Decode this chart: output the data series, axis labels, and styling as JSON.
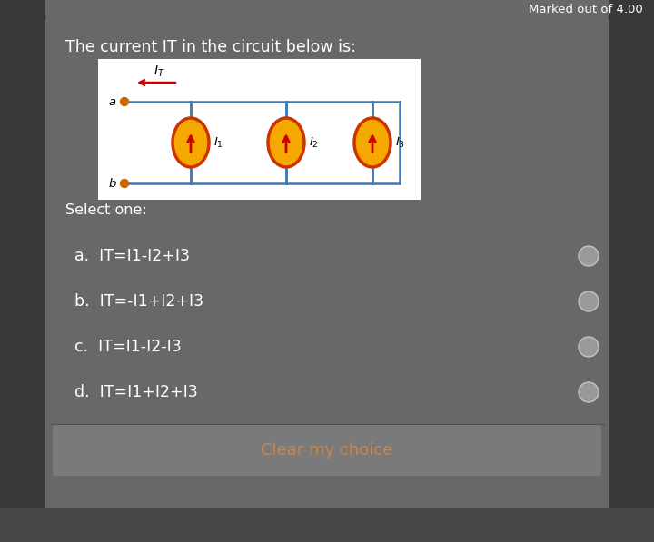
{
  "bg_outer": "#585858",
  "bg_header": "#696969",
  "bg_card": "#686868",
  "bg_circuit": "#ffffff",
  "bg_button": "#7a7a7a",
  "header_text": "Marked out of 4.00",
  "question_text": "The current IT in the circuit below is:",
  "select_text": "Select one:",
  "options": [
    "a.  IT=I1-I2+I3",
    "b.  IT=-I1+I2+I3",
    "c.  IT=I1-I2-I3",
    "d.  IT=I1+I2+I3"
  ],
  "button_text": "Clear my choice",
  "button_color": "#c8864a",
  "text_color": "#ffffff",
  "circuit_line": "#3a7abf",
  "arrow_color": "#cc0000",
  "circle_outer": "#cc3300",
  "circle_inner": "#f5a800",
  "node_color": "#cc6600",
  "radio_color": "#b0b0b0"
}
